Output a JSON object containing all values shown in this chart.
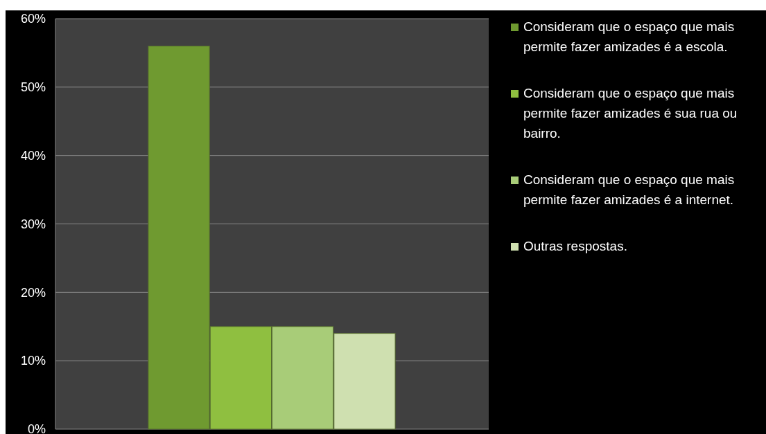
{
  "chart_data": {
    "type": "bar",
    "categories": [
      null
    ],
    "series": [
      {
        "name": "Consideram que o espaço que mais permite fazer amizades é a escola.",
        "color": "#6f9a30",
        "values": [
          56
        ]
      },
      {
        "name": "Consideram que o espaço que mais permite fazer amizades é sua rua ou bairro.",
        "color": "#8fbf40",
        "values": [
          15
        ]
      },
      {
        "name": "Consideram que o espaço que mais permite fazer amizades é a internet.",
        "color": "#a8cc78",
        "values": [
          15
        ]
      },
      {
        "name": "Outras respostas.",
        "color": "#cfe0b0",
        "values": [
          14
        ]
      }
    ],
    "ylim": [
      0,
      60
    ],
    "yticks": [
      {
        "value": 0,
        "label": "0%"
      },
      {
        "value": 10,
        "label": "10%"
      },
      {
        "value": 20,
        "label": "20%"
      },
      {
        "value": 30,
        "label": "30%"
      },
      {
        "value": 40,
        "label": "40%"
      },
      {
        "value": 50,
        "label": "50%"
      },
      {
        "value": 60,
        "label": "60%"
      }
    ],
    "grid": "y",
    "legend": "right"
  }
}
